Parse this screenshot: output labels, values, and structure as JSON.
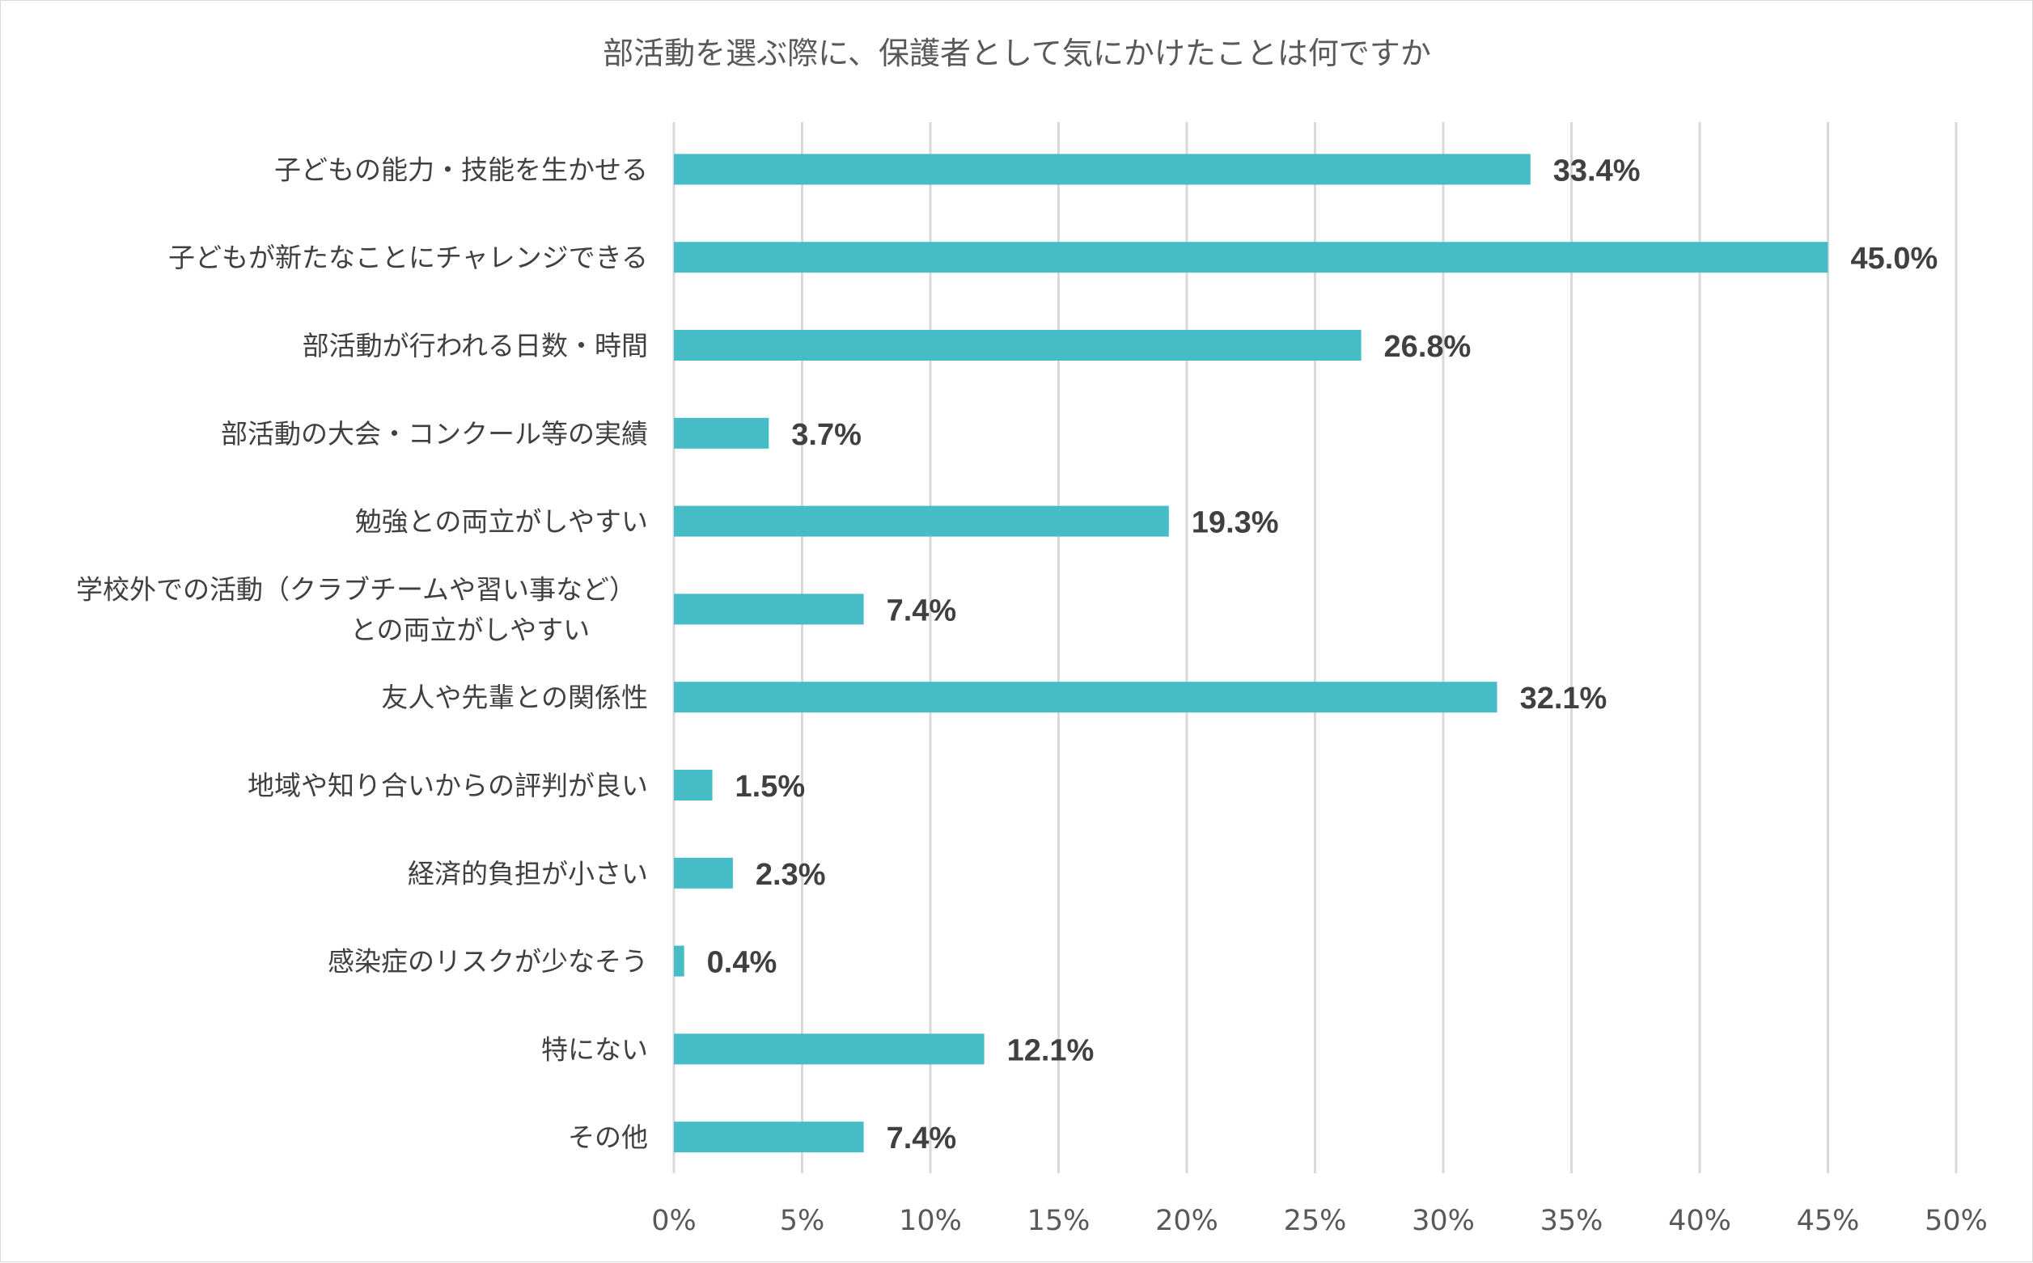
{
  "chart_data": {
    "type": "bar",
    "orientation": "horizontal",
    "title": "部活動を選ぶ際に、保護者として気にかけたことは何ですか",
    "categories": [
      "子どもの能力・技能を生かせる",
      "子どもが新たなことにチャレンジできる",
      "部活動が行われる日数・時間",
      "部活動の大会・コンクール等の実績",
      "勉強との両立がしやすい",
      "学校外での活動（クラブチームや習い事など）との両立がしやすい",
      "友人や先輩との関係性",
      "地域や知り合いからの評判が良い",
      "経済的負担が小さい",
      "感染症のリスクが少なそう",
      "特にない",
      "その他"
    ],
    "category_lines": [
      [
        "子どもの能力・技能を生かせる"
      ],
      [
        "子どもが新たなことにチャレンジできる"
      ],
      [
        "部活動が行われる日数・時間"
      ],
      [
        "部活動の大会・コンクール等の実績"
      ],
      [
        "勉強との両立がしやすい"
      ],
      [
        "学校外での活動（クラブチームや習い事など）",
        "との両立がしやすい"
      ],
      [
        "友人や先輩との関係性"
      ],
      [
        "地域や知り合いからの評判が良い"
      ],
      [
        "経済的負担が小さい"
      ],
      [
        "感染症のリスクが少なそう"
      ],
      [
        "特にない"
      ],
      [
        "その他"
      ]
    ],
    "values": [
      33.4,
      45.0,
      26.8,
      3.7,
      19.3,
      7.4,
      32.1,
      1.5,
      2.3,
      0.4,
      12.1,
      7.4
    ],
    "data_labels": [
      "33.4%",
      "45.0%",
      "26.8%",
      "3.7%",
      "19.3%",
      "7.4%",
      "32.1%",
      "1.5%",
      "2.3%",
      "0.4%",
      "12.1%",
      "7.4%"
    ],
    "xlim": [
      0,
      50
    ],
    "x_ticks": [
      0,
      5,
      10,
      15,
      20,
      25,
      30,
      35,
      40,
      45,
      50
    ],
    "x_tick_labels": [
      "0%",
      "5%",
      "10%",
      "15%",
      "20%",
      "25%",
      "30%",
      "35%",
      "40%",
      "45%",
      "50%"
    ],
    "xlabel": "",
    "ylabel": "",
    "grid": "vertical",
    "legend": "none",
    "bar_color": "#45BCC6"
  }
}
